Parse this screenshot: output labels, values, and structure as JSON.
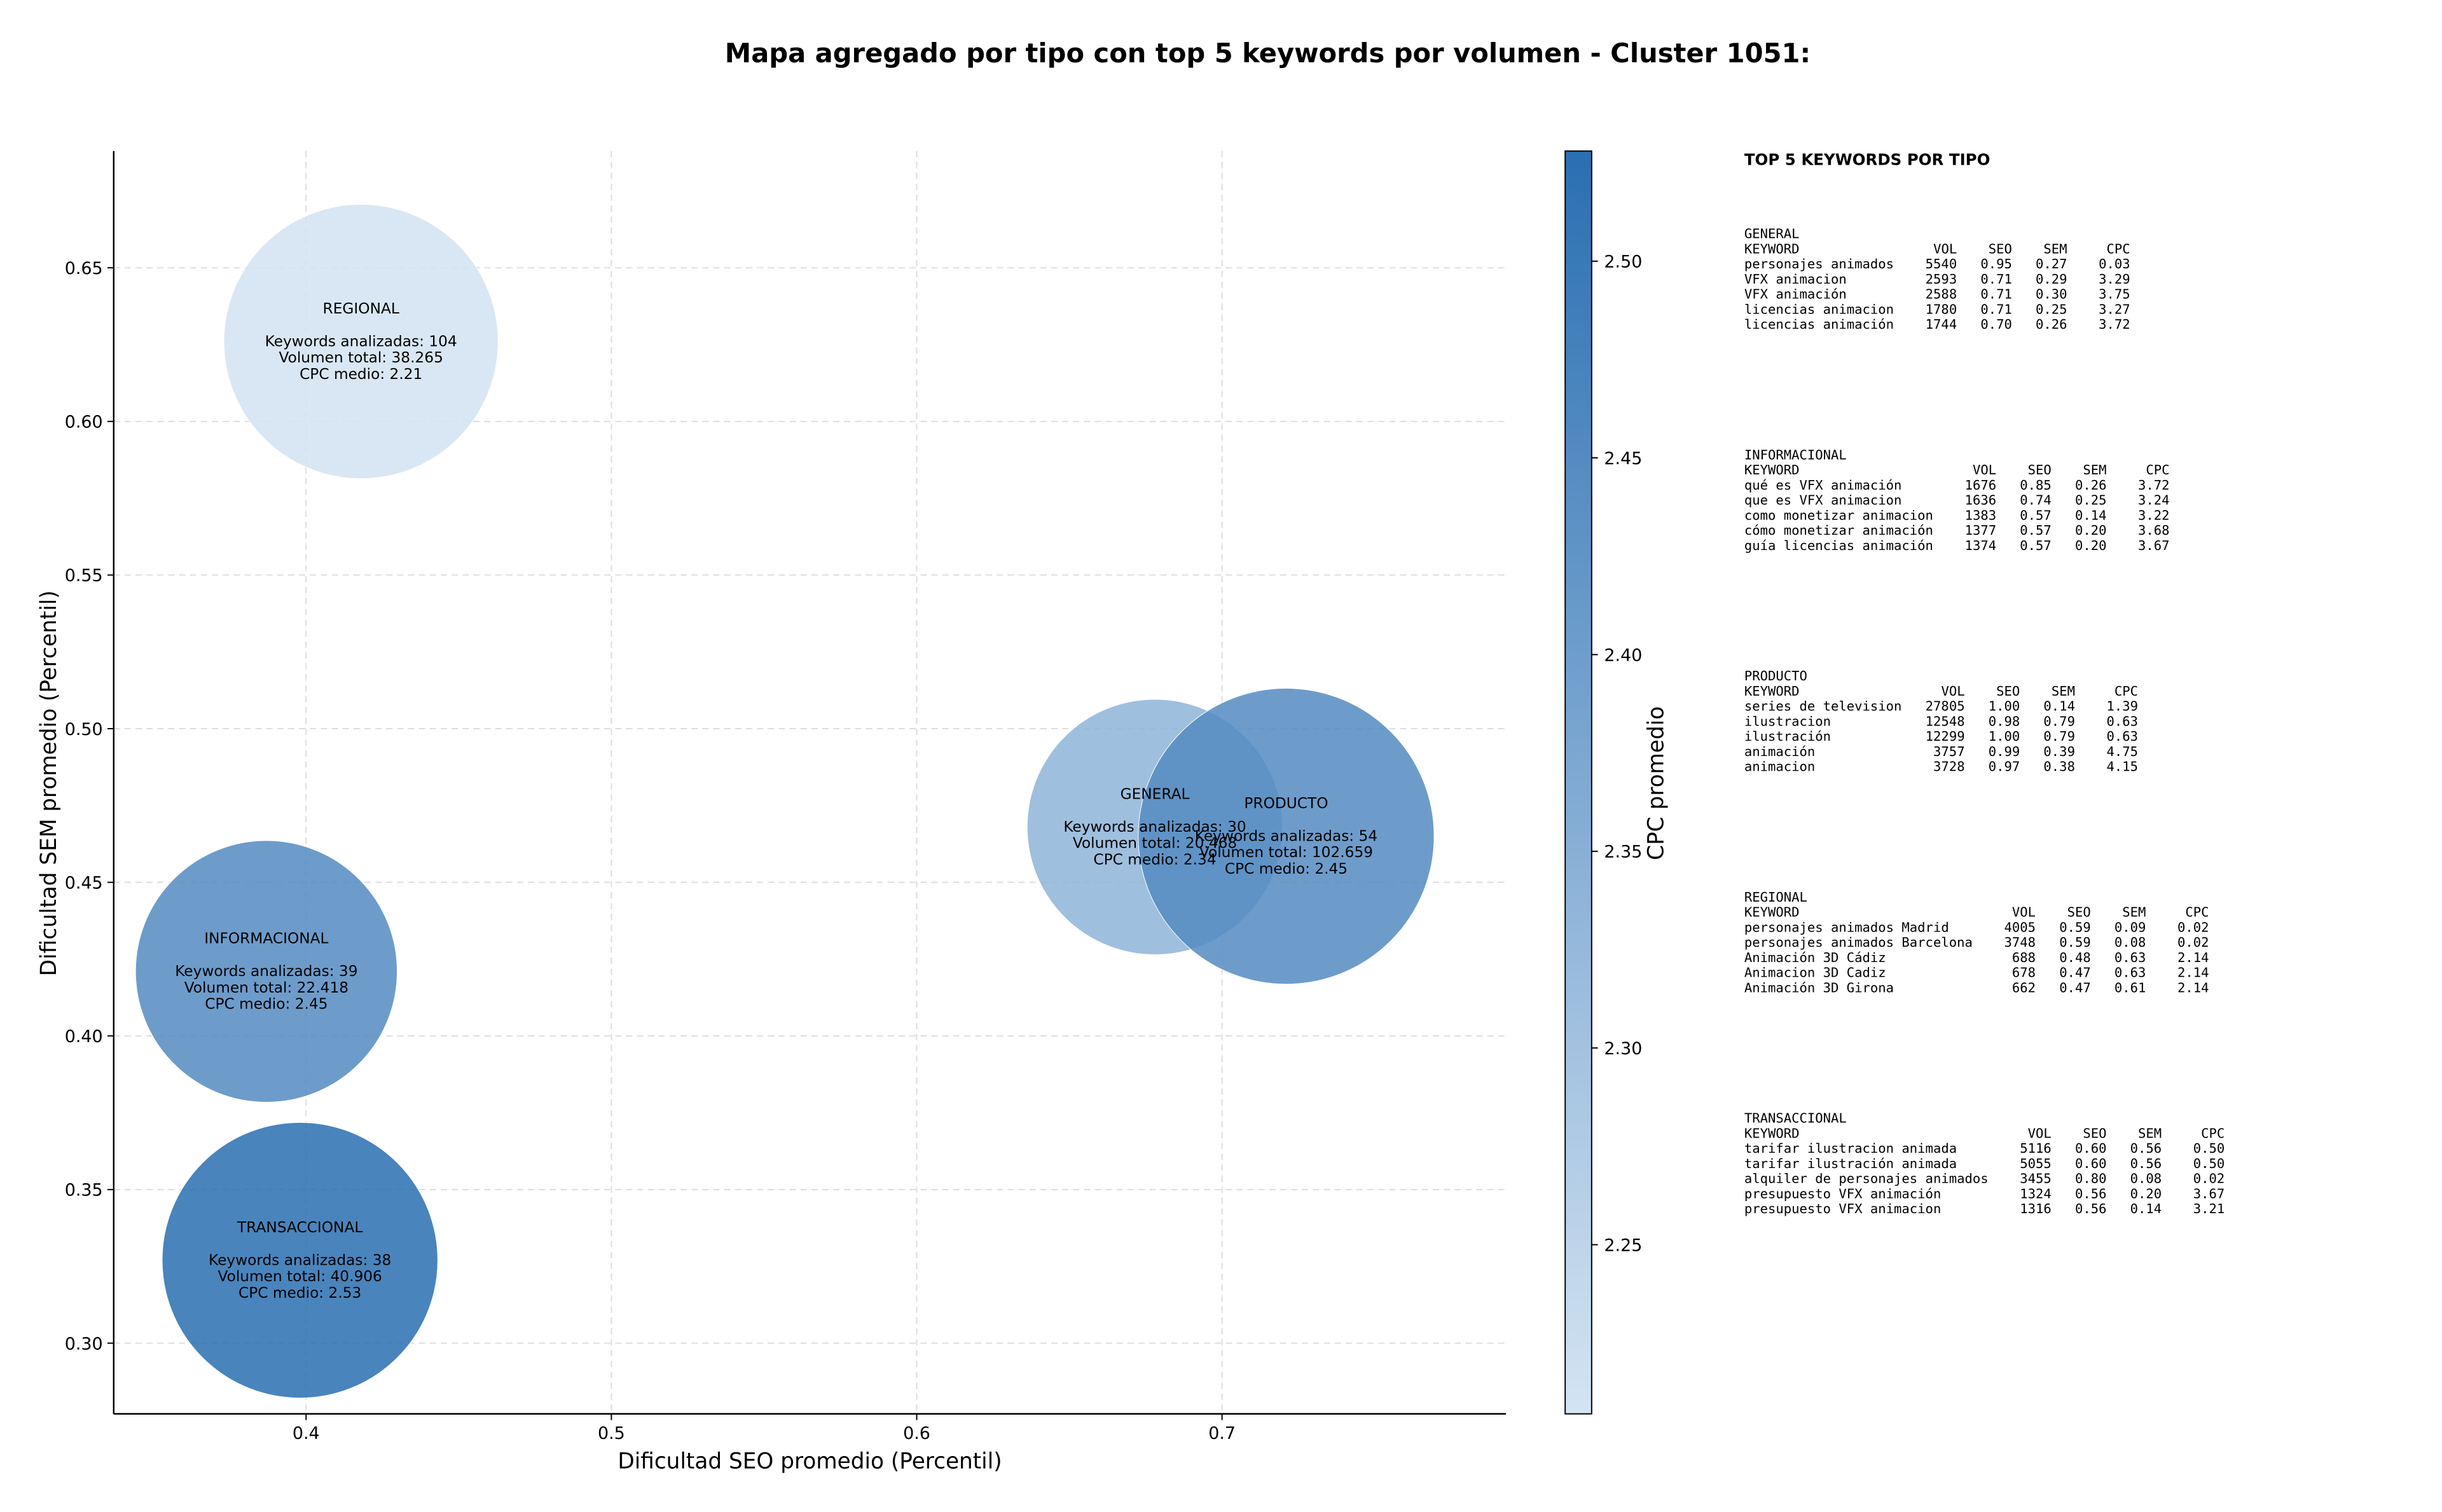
{
  "chart_data": {
    "type": "bubble",
    "title": "Mapa agregado por tipo con top 5 keywords por volumen - Cluster 1051:",
    "xlabel": "Dificultad SEO promedio (Percentil)",
    "ylabel": "Dificultad SEM promedio (Percentil)",
    "xlim": [
      0.337,
      0.793
    ],
    "ylim": [
      0.277,
      0.688
    ],
    "xticks": [
      0.4,
      0.5,
      0.6,
      0.7
    ],
    "yticks": [
      {
        "value": 0.3,
        "label": "0.30"
      },
      0.35,
      {
        "value": 0.4,
        "label": "0.40"
      },
      0.45,
      {
        "value": 0.5,
        "label": "0.50"
      },
      0.55,
      {
        "value": 0.6,
        "label": "0.60"
      },
      0.65
    ],
    "grid": true,
    "series": [
      {
        "names": [
          "REGIONAL",
          "GENERAL",
          "PRODUCTO",
          "INFORMACIONAL",
          "TRANSACCIONAL"
        ],
        "x": [
          0.418,
          0.678,
          0.721,
          0.387,
          0.398
        ],
        "y": [
          0.626,
          0.468,
          0.465,
          0.421,
          0.327
        ],
        "volume": [
          38265,
          20468,
          102659,
          22418,
          40906
        ],
        "cpc": [
          2.21,
          2.34,
          2.45,
          2.45,
          2.53
        ],
        "annotations": [
          [
            "Keywords analizadas: 104",
            "Volumen total: 38.265",
            "CPC medio: 2.21"
          ],
          [
            "Keywords analizadas: 30",
            "Volumen total: 20.468",
            "CPC medio: 2.34"
          ],
          [
            "Keywords analizadas: 54",
            "Volumen total: 102.659",
            "CPC medio: 2.45"
          ],
          [
            "Keywords analizadas: 39",
            "Volumen total: 22.418",
            "CPC medio: 2.45"
          ],
          [
            "Keywords analizadas: 38",
            "Volumen total: 40.906",
            "CPC medio: 2.53"
          ]
        ]
      }
    ],
    "colorbar": {
      "label": "CPC promedio",
      "lim": [
        2.207,
        2.528
      ],
      "ticks": [
        2.25,
        {
          "value": 2.3,
          "label": "2.30"
        },
        2.35,
        {
          "value": 2.4,
          "label": "2.40"
        },
        2.45,
        {
          "value": 2.5,
          "label": "2.50"
        }
      ],
      "colors": [
        "#d4e4f3",
        "#2a6fb2"
      ]
    }
  },
  "panel": {
    "title": "TOP 5 KEYWORDS POR TIPO",
    "groups": [
      {
        "name": "GENERAL",
        "header": [
          "KEYWORD",
          "VOL",
          "SEO",
          "SEM",
          "CPC"
        ],
        "rows": [
          [
            "personajes animados",
            "5540",
            "0.95",
            "0.27",
            "0.03"
          ],
          [
            "VFX animacion",
            "2593",
            "0.71",
            "0.29",
            "3.29"
          ],
          [
            "VFX animación",
            "2588",
            "0.71",
            "0.30",
            "3.75"
          ],
          [
            "licencias animacion",
            "1780",
            "0.71",
            "0.25",
            "3.27"
          ],
          [
            "licencias animación",
            "1744",
            "0.70",
            "0.26",
            "3.72"
          ]
        ]
      },
      {
        "name": "INFORMACIONAL",
        "header": [
          "KEYWORD",
          "VOL",
          "SEO",
          "SEM",
          "CPC"
        ],
        "rows": [
          [
            "qué es VFX animación",
            "1676",
            "0.85",
            "0.26",
            "3.72"
          ],
          [
            "que es VFX animacion",
            "1636",
            "0.74",
            "0.25",
            "3.24"
          ],
          [
            "como monetizar animacion",
            "1383",
            "0.57",
            "0.14",
            "3.22"
          ],
          [
            "cómo monetizar animación",
            "1377",
            "0.57",
            "0.20",
            "3.68"
          ],
          [
            "guía licencias animación",
            "1374",
            "0.57",
            "0.20",
            "3.67"
          ]
        ]
      },
      {
        "name": "PRODUCTO",
        "header": [
          "KEYWORD",
          "VOL",
          "SEO",
          "SEM",
          "CPC"
        ],
        "rows": [
          [
            "series de television",
            "27805",
            "1.00",
            "0.14",
            "1.39"
          ],
          [
            "ilustracion",
            "12548",
            "0.98",
            "0.79",
            "0.63"
          ],
          [
            "ilustración",
            "12299",
            "1.00",
            "0.79",
            "0.63"
          ],
          [
            "animación",
            "3757",
            "0.99",
            "0.39",
            "4.75"
          ],
          [
            "animacion",
            "3728",
            "0.97",
            "0.38",
            "4.15"
          ]
        ]
      },
      {
        "name": "REGIONAL",
        "header": [
          "KEYWORD",
          "VOL",
          "SEO",
          "SEM",
          "CPC"
        ],
        "rows": [
          [
            "personajes animados Madrid",
            "4005",
            "0.59",
            "0.09",
            "0.02"
          ],
          [
            "personajes animados Barcelona",
            "3748",
            "0.59",
            "0.08",
            "0.02"
          ],
          [
            "Animación 3D Cádiz",
            "688",
            "0.48",
            "0.63",
            "2.14"
          ],
          [
            "Animacion 3D Cadiz",
            "678",
            "0.47",
            "0.63",
            "2.14"
          ],
          [
            "Animación 3D Girona",
            "662",
            "0.47",
            "0.61",
            "2.14"
          ]
        ]
      },
      {
        "name": "TRANSACCIONAL",
        "header": [
          "KEYWORD",
          "VOL",
          "SEO",
          "SEM",
          "CPC"
        ],
        "rows": [
          [
            "tarifar ilustracion animada",
            "5116",
            "0.60",
            "0.56",
            "0.50"
          ],
          [
            "tarifar ilustración animada",
            "5055",
            "0.60",
            "0.56",
            "0.50"
          ],
          [
            "alquiler de personajes animados",
            "3455",
            "0.80",
            "0.08",
            "0.02"
          ],
          [
            "presupuesto VFX animación",
            "1324",
            "0.56",
            "0.20",
            "3.67"
          ],
          [
            "presupuesto VFX animacion",
            "1316",
            "0.56",
            "0.14",
            "3.21"
          ]
        ]
      }
    ]
  }
}
